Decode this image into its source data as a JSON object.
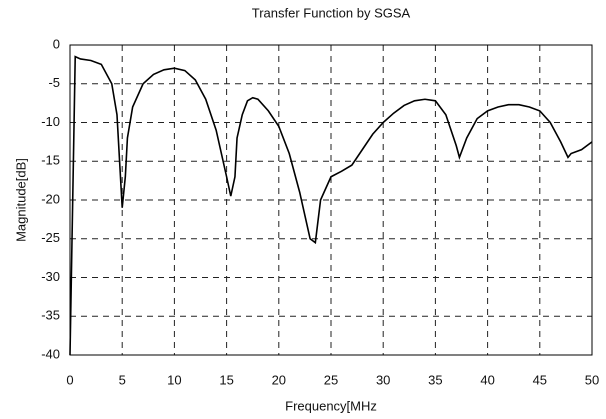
{
  "chart_data": {
    "type": "line",
    "title": "Transfer Function by SGSA",
    "xlabel": "Frequency[MHz",
    "ylabel": "Magnitude[dB]",
    "x": [
      0,
      0.5,
      1,
      2,
      3,
      4,
      4.5,
      5,
      5.3,
      5.5,
      6,
      7,
      8,
      9,
      10,
      11,
      12,
      13,
      14,
      15,
      15.4,
      15.8,
      16,
      16.5,
      17,
      17.5,
      18,
      19,
      20,
      21,
      22,
      23,
      23.5,
      24,
      25,
      26,
      27,
      28,
      29,
      30,
      31,
      32,
      33,
      34,
      35,
      36,
      37,
      37.3,
      38,
      39,
      40,
      41,
      42,
      43,
      44,
      45,
      46,
      47,
      47.7,
      48,
      49,
      50
    ],
    "series": [
      {
        "name": "Transfer Function",
        "color": "#000000",
        "values": [
          -40,
          -1.5,
          -1.8,
          -2,
          -2.5,
          -5,
          -9,
          -21,
          -17,
          -12,
          -8,
          -5,
          -3.8,
          -3.2,
          -3,
          -3.3,
          -4.5,
          -7,
          -11,
          -17,
          -19.5,
          -17,
          -12,
          -9,
          -7.2,
          -6.8,
          -7,
          -8.5,
          -10.5,
          -14,
          -19,
          -25,
          -25.5,
          -20,
          -17,
          -16.3,
          -15.5,
          -13.5,
          -11.5,
          -10,
          -8.8,
          -7.8,
          -7.2,
          -7,
          -7.2,
          -9,
          -13,
          -14.5,
          -12,
          -9.5,
          -8.5,
          -8,
          -7.7,
          -7.7,
          -8,
          -8.5,
          -10,
          -12.5,
          -14.5,
          -14,
          -13.5,
          -12.5
        ]
      }
    ],
    "xlim": [
      0,
      50
    ],
    "xticks": [
      0,
      5,
      10,
      15,
      20,
      25,
      30,
      35,
      40,
      45,
      50
    ],
    "ylim": [
      -40,
      0
    ],
    "yticks": [
      -40,
      -35,
      -30,
      -25,
      -20,
      -15,
      -10,
      -5,
      0
    ],
    "grid": true
  }
}
